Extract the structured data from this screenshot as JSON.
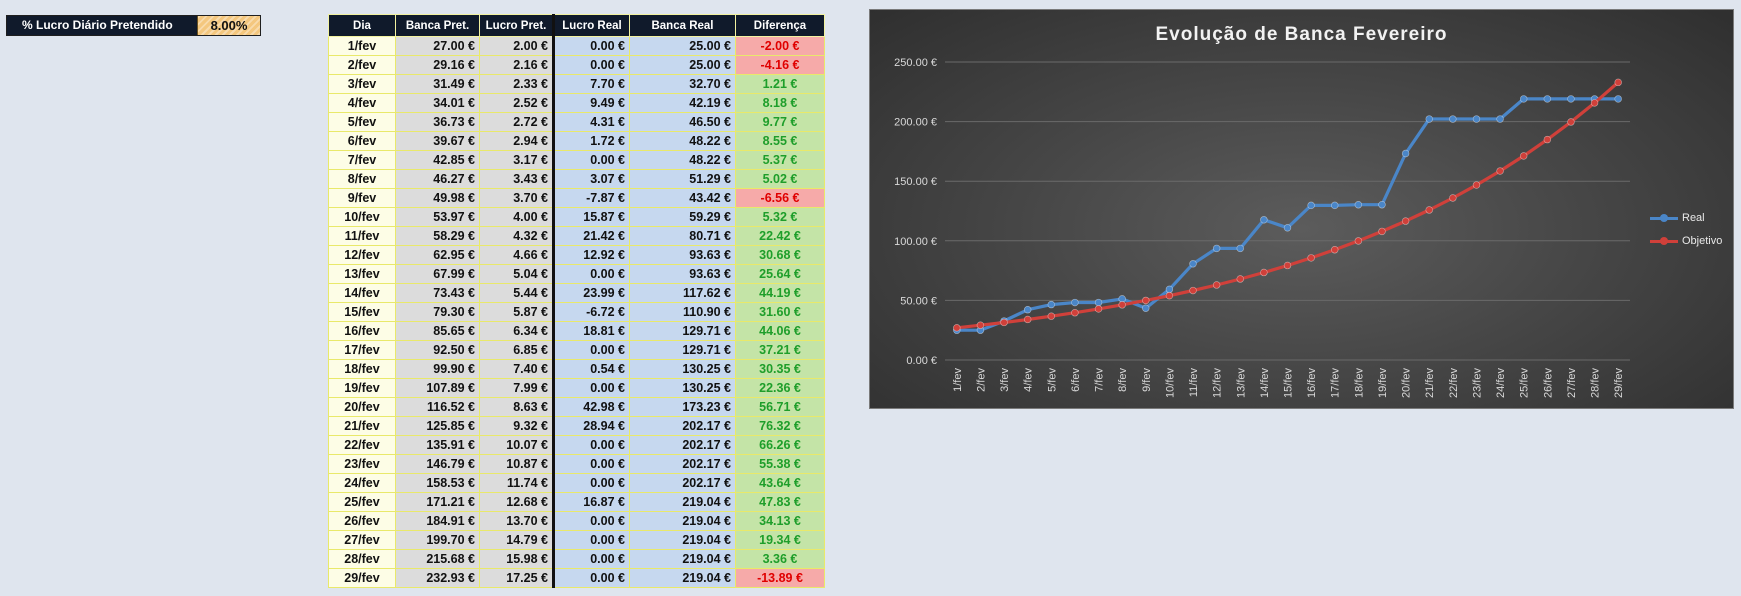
{
  "parameter": {
    "label": "% Lucro Diário Pretendido",
    "value": "8.00%"
  },
  "table": {
    "headers": [
      "Dia",
      "Banca Pret.",
      "Lucro Pret.",
      "Lucro Real",
      "Banca Real",
      "Diferença"
    ],
    "rows": [
      [
        "1/fev",
        "27.00 €",
        "2.00 €",
        "0.00 €",
        "25.00 €",
        "-2.00 €"
      ],
      [
        "2/fev",
        "29.16 €",
        "2.16 €",
        "0.00 €",
        "25.00 €",
        "-4.16 €"
      ],
      [
        "3/fev",
        "31.49 €",
        "2.33 €",
        "7.70 €",
        "32.70 €",
        "1.21 €"
      ],
      [
        "4/fev",
        "34.01 €",
        "2.52 €",
        "9.49 €",
        "42.19 €",
        "8.18 €"
      ],
      [
        "5/fev",
        "36.73 €",
        "2.72 €",
        "4.31 €",
        "46.50 €",
        "9.77 €"
      ],
      [
        "6/fev",
        "39.67 €",
        "2.94 €",
        "1.72 €",
        "48.22 €",
        "8.55 €"
      ],
      [
        "7/fev",
        "42.85 €",
        "3.17 €",
        "0.00 €",
        "48.22 €",
        "5.37 €"
      ],
      [
        "8/fev",
        "46.27 €",
        "3.43 €",
        "3.07 €",
        "51.29 €",
        "5.02 €"
      ],
      [
        "9/fev",
        "49.98 €",
        "3.70 €",
        "-7.87 €",
        "43.42 €",
        "-6.56 €"
      ],
      [
        "10/fev",
        "53.97 €",
        "4.00 €",
        "15.87 €",
        "59.29 €",
        "5.32 €"
      ],
      [
        "11/fev",
        "58.29 €",
        "4.32 €",
        "21.42 €",
        "80.71 €",
        "22.42 €"
      ],
      [
        "12/fev",
        "62.95 €",
        "4.66 €",
        "12.92 €",
        "93.63 €",
        "30.68 €"
      ],
      [
        "13/fev",
        "67.99 €",
        "5.04 €",
        "0.00 €",
        "93.63 €",
        "25.64 €"
      ],
      [
        "14/fev",
        "73.43 €",
        "5.44 €",
        "23.99 €",
        "117.62 €",
        "44.19 €"
      ],
      [
        "15/fev",
        "79.30 €",
        "5.87 €",
        "-6.72 €",
        "110.90 €",
        "31.60 €"
      ],
      [
        "16/fev",
        "85.65 €",
        "6.34 €",
        "18.81 €",
        "129.71 €",
        "44.06 €"
      ],
      [
        "17/fev",
        "92.50 €",
        "6.85 €",
        "0.00 €",
        "129.71 €",
        "37.21 €"
      ],
      [
        "18/fev",
        "99.90 €",
        "7.40 €",
        "0.54 €",
        "130.25 €",
        "30.35 €"
      ],
      [
        "19/fev",
        "107.89 €",
        "7.99 €",
        "0.00 €",
        "130.25 €",
        "22.36 €"
      ],
      [
        "20/fev",
        "116.52 €",
        "8.63 €",
        "42.98 €",
        "173.23 €",
        "56.71 €"
      ],
      [
        "21/fev",
        "125.85 €",
        "9.32 €",
        "28.94 €",
        "202.17 €",
        "76.32 €"
      ],
      [
        "22/fev",
        "135.91 €",
        "10.07 €",
        "0.00 €",
        "202.17 €",
        "66.26 €"
      ],
      [
        "23/fev",
        "146.79 €",
        "10.87 €",
        "0.00 €",
        "202.17 €",
        "55.38 €"
      ],
      [
        "24/fev",
        "158.53 €",
        "11.74 €",
        "0.00 €",
        "202.17 €",
        "43.64 €"
      ],
      [
        "25/fev",
        "171.21 €",
        "12.68 €",
        "16.87 €",
        "219.04 €",
        "47.83 €"
      ],
      [
        "26/fev",
        "184.91 €",
        "13.70 €",
        "0.00 €",
        "219.04 €",
        "34.13 €"
      ],
      [
        "27/fev",
        "199.70 €",
        "14.79 €",
        "0.00 €",
        "219.04 €",
        "19.34 €"
      ],
      [
        "28/fev",
        "215.68 €",
        "15.98 €",
        "0.00 €",
        "219.04 €",
        "3.36 €"
      ],
      [
        "29/fev",
        "232.93 €",
        "17.25 €",
        "0.00 €",
        "219.04 €",
        "-13.89 €"
      ]
    ]
  },
  "colors": {
    "header_bg": "#101a2b",
    "positive_bg": "#c4e4a7",
    "positive_text": "#1e9e2a",
    "negative_bg": "#f6aaa9",
    "negative_text": "#e00000",
    "series_real": "#4a86c8",
    "series_objetivo": "#d0403a"
  },
  "chart_data": {
    "type": "line",
    "title": "Evolução de Banca Fevereiro",
    "categories": [
      "1/fev",
      "2/fev",
      "3/fev",
      "4/fev",
      "5/fev",
      "6/fev",
      "7/fev",
      "8/fev",
      "9/fev",
      "10/fev",
      "11/fev",
      "12/fev",
      "13/fev",
      "14/fev",
      "15/fev",
      "16/fev",
      "17/fev",
      "18/fev",
      "19/fev",
      "20/fev",
      "21/fev",
      "22/fev",
      "23/fev",
      "24/fev",
      "25/fev",
      "26/fev",
      "27/fev",
      "28/fev",
      "29/fev"
    ],
    "series": [
      {
        "name": "Real",
        "values": [
          25.0,
          25.0,
          32.7,
          42.19,
          46.5,
          48.22,
          48.22,
          51.29,
          43.42,
          59.29,
          80.71,
          93.63,
          93.63,
          117.62,
          110.9,
          129.71,
          129.71,
          130.25,
          130.25,
          173.23,
          202.17,
          202.17,
          202.17,
          202.17,
          219.04,
          219.04,
          219.04,
          219.04,
          219.04
        ]
      },
      {
        "name": "Objetivo",
        "values": [
          27.0,
          29.16,
          31.49,
          34.01,
          36.73,
          39.67,
          42.85,
          46.27,
          49.98,
          53.97,
          58.29,
          62.95,
          67.99,
          73.43,
          79.3,
          85.65,
          92.5,
          99.9,
          107.89,
          116.52,
          125.85,
          135.91,
          146.79,
          158.53,
          171.21,
          184.91,
          199.7,
          215.68,
          232.93
        ]
      }
    ],
    "y_ticks": [
      "0.00 €",
      "50.00 €",
      "100.00 €",
      "150.00 €",
      "200.00 €",
      "250.00 €"
    ],
    "ylim": [
      0,
      250
    ],
    "legend_position": "right",
    "grid": true
  }
}
